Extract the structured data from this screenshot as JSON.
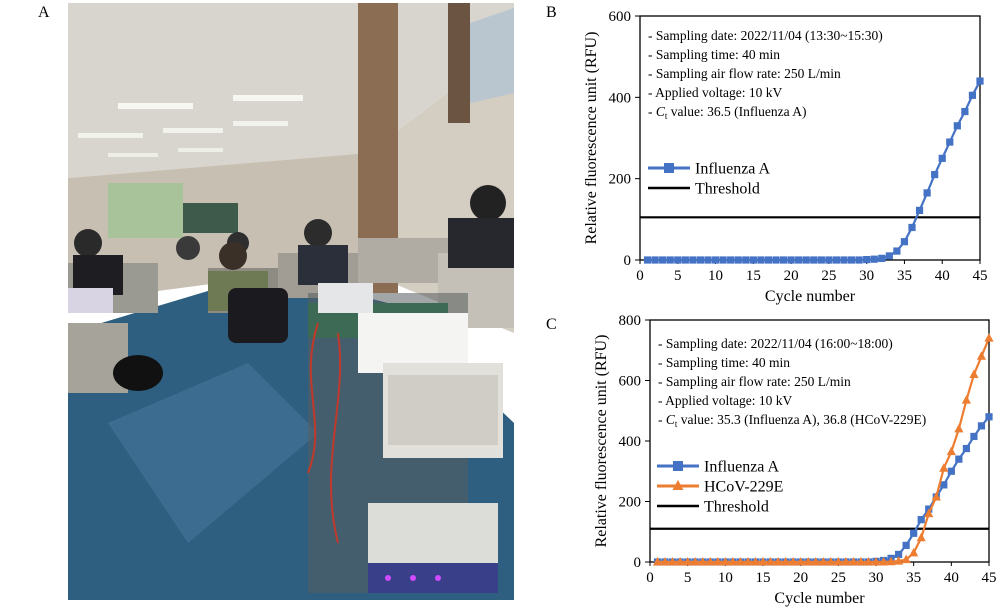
{
  "panel_labels": {
    "a": "A",
    "b": "B",
    "c": "C"
  },
  "photo": {
    "description_icon": "lecture-room-photo",
    "colors": {
      "floor": "#2f5f80",
      "wall": "#c9c1b3",
      "ceiling": "#d9d6cf"
    }
  },
  "chart_data": [
    {
      "type": "line",
      "panel": "B",
      "xlabel": "Cycle number",
      "ylabel": "Relative fluorescence unit (RFU)",
      "xlim": [
        0,
        45
      ],
      "ylim": [
        0,
        600
      ],
      "xticks": [
        "0",
        "5",
        "10",
        "15",
        "20",
        "25",
        "30",
        "35",
        "40",
        "45"
      ],
      "yticks": [
        "0",
        "200",
        "400",
        "600"
      ],
      "annotations": [
        "- Sampling date: 2022/11/04 (13:30~15:30)",
        "- Sampling time: 40 min",
        "- Sampling air flow rate: 250 L/min",
        "- Applied voltage: 10 kV",
        {
          "prefix": "- ",
          "italic": "C",
          "sub": "t",
          "rest": " value: 36.5 (Influenza A)"
        }
      ],
      "threshold": {
        "name": "Threshold",
        "value": 105
      },
      "legend_position": "center-left",
      "series": [
        {
          "name": "Influenza A",
          "color": "#4472c4",
          "marker": "square",
          "x": [
            1,
            2,
            3,
            4,
            5,
            6,
            7,
            8,
            9,
            10,
            11,
            12,
            13,
            14,
            15,
            16,
            17,
            18,
            19,
            20,
            21,
            22,
            23,
            24,
            25,
            26,
            27,
            28,
            29,
            30,
            31,
            32,
            33,
            34,
            35,
            36,
            37,
            38,
            39,
            40,
            41,
            42,
            43,
            44,
            45
          ],
          "y": [
            0,
            0,
            0,
            0,
            0,
            0,
            0,
            0,
            0,
            0,
            0,
            0,
            0,
            0,
            0,
            0,
            0,
            0,
            0,
            0,
            0,
            0,
            0,
            0,
            0,
            0,
            0,
            0,
            0,
            1,
            2,
            4,
            10,
            22,
            45,
            80,
            122,
            165,
            210,
            250,
            290,
            330,
            365,
            405,
            440
          ]
        }
      ]
    },
    {
      "type": "line",
      "panel": "C",
      "xlabel": "Cycle number",
      "ylabel": "Relative fluorescence unit (RFU)",
      "xlim": [
        0,
        45
      ],
      "ylim": [
        0,
        800
      ],
      "xticks": [
        "0",
        "5",
        "10",
        "15",
        "20",
        "25",
        "30",
        "35",
        "40",
        "45"
      ],
      "yticks": [
        "0",
        "200",
        "400",
        "600",
        "800"
      ],
      "annotations": [
        "- Sampling date: 2022/11/04 (16:00~18:00)",
        "- Sampling time: 40 min",
        "- Sampling air flow rate: 250 L/min",
        "- Applied voltage: 10 kV",
        {
          "prefix": "- ",
          "italic": "C",
          "sub": "t",
          "rest": " value: 35.3 (Influenza A), 36.8 (HCoV-229E)"
        }
      ],
      "threshold": {
        "name": "Threshold",
        "value": 110
      },
      "legend_position": "center-left",
      "series": [
        {
          "name": "Influenza A",
          "color": "#4472c4",
          "marker": "square",
          "x": [
            1,
            2,
            3,
            4,
            5,
            6,
            7,
            8,
            9,
            10,
            11,
            12,
            13,
            14,
            15,
            16,
            17,
            18,
            19,
            20,
            21,
            22,
            23,
            24,
            25,
            26,
            27,
            28,
            29,
            30,
            31,
            32,
            33,
            34,
            35,
            36,
            37,
            38,
            39,
            40,
            41,
            42,
            43,
            44,
            45
          ],
          "y": [
            0,
            0,
            0,
            0,
            0,
            0,
            0,
            0,
            0,
            0,
            0,
            0,
            0,
            0,
            0,
            0,
            0,
            0,
            0,
            0,
            0,
            0,
            0,
            0,
            0,
            0,
            0,
            0,
            0,
            2,
            5,
            12,
            25,
            55,
            95,
            140,
            175,
            215,
            255,
            300,
            340,
            375,
            415,
            450,
            480
          ]
        },
        {
          "name": "HCoV-229E",
          "color": "#ed7d31",
          "marker": "triangle",
          "x": [
            1,
            2,
            3,
            4,
            5,
            6,
            7,
            8,
            9,
            10,
            11,
            12,
            13,
            14,
            15,
            16,
            17,
            18,
            19,
            20,
            21,
            22,
            23,
            24,
            25,
            26,
            27,
            28,
            29,
            30,
            31,
            32,
            33,
            34,
            35,
            36,
            37,
            38,
            39,
            40,
            41,
            42,
            43,
            44,
            45
          ],
          "y": [
            0,
            0,
            0,
            0,
            0,
            0,
            0,
            0,
            0,
            0,
            0,
            0,
            0,
            0,
            0,
            0,
            0,
            0,
            0,
            0,
            0,
            0,
            0,
            0,
            0,
            0,
            0,
            0,
            0,
            0,
            0,
            1,
            3,
            8,
            30,
            80,
            160,
            215,
            310,
            365,
            440,
            535,
            620,
            680,
            740
          ]
        }
      ]
    }
  ]
}
